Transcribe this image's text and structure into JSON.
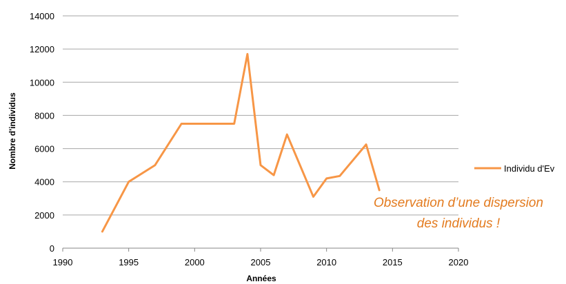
{
  "chart_data": {
    "type": "line",
    "xlabel": "Années",
    "ylabel": "Nombre d'individus",
    "xlim": [
      1990,
      2020
    ],
    "ylim": [
      0,
      14000
    ],
    "x_ticks": [
      "1990",
      "1995",
      "2000",
      "2005",
      "2010",
      "2015",
      "2020"
    ],
    "y_ticks": [
      "0",
      "2000",
      "4000",
      "6000",
      "8000",
      "10000",
      "12000",
      "14000"
    ],
    "grid": true,
    "legend_position": "right",
    "series": [
      {
        "name": "Individu d'Ev",
        "color": "#f79646",
        "x": [
          1993,
          1995,
          1997,
          1999,
          2001,
          2003,
          2004,
          2005,
          2006,
          2007,
          2009,
          2010,
          2011,
          2013,
          2014
        ],
        "y": [
          1000,
          4000,
          5000,
          7500,
          7500,
          7500,
          11700,
          5000,
          4400,
          6850,
          3100,
          4200,
          4350,
          6250,
          3500
        ]
      }
    ],
    "annotation": {
      "lines": [
        "Observation d’une dispersion",
        "des  individus !"
      ],
      "color": "#e37b1f"
    }
  }
}
